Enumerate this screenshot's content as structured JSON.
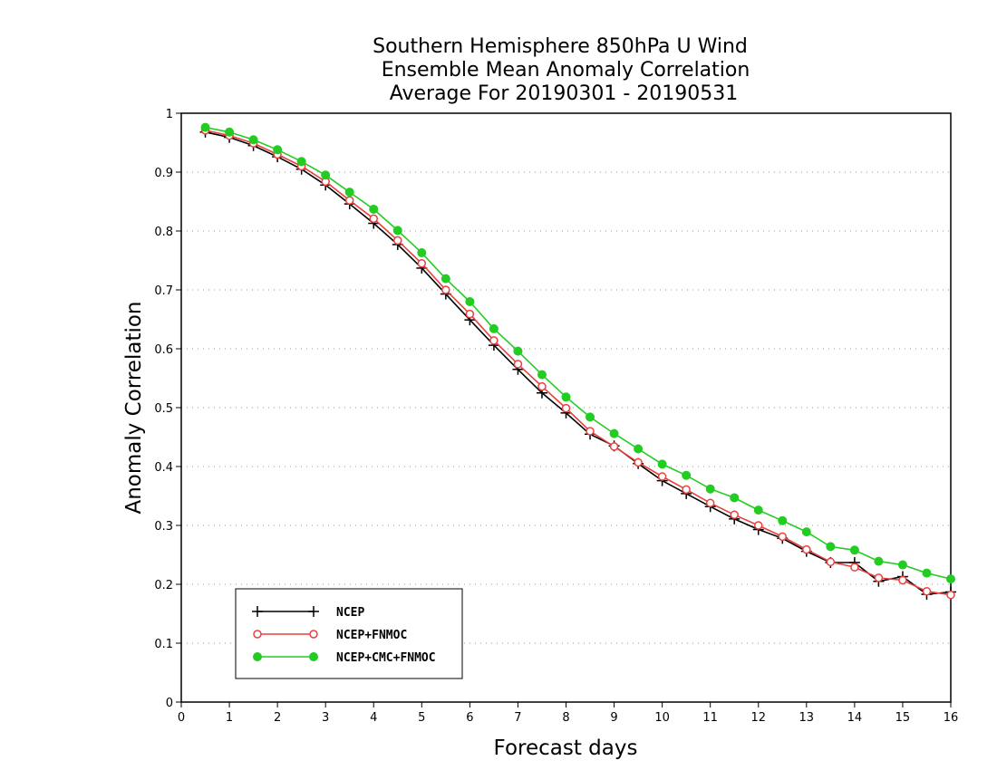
{
  "chart_data": {
    "type": "line",
    "title_lines": [
      "Southern Hemisphere 850hPa U Wind",
      "Ensemble Mean Anomaly Correlation",
      "Average For 20190301 - 20190531"
    ],
    "xlabel": "Forecast days",
    "ylabel": "Anomaly Correlation",
    "xlim": [
      0,
      16
    ],
    "ylim": [
      0,
      1
    ],
    "x_ticks": [
      "0",
      "1",
      "2",
      "3",
      "4",
      "5",
      "6",
      "7",
      "8",
      "9",
      "10",
      "11",
      "12",
      "13",
      "14",
      "15",
      "16"
    ],
    "y_ticks": [
      "0",
      "0.1",
      "0.2",
      "0.3",
      "0.4",
      "0.5",
      "0.6",
      "0.7",
      "0.8",
      "0.9",
      "1"
    ],
    "grid": "horizontal dotted",
    "legend_position": "bottom-left",
    "x": [
      0.5,
      1,
      1.5,
      2,
      2.5,
      3,
      3.5,
      4,
      4.5,
      5,
      5.5,
      6,
      6.5,
      7,
      7.5,
      8,
      8.5,
      9,
      9.5,
      10,
      10.5,
      11,
      11.5,
      12,
      12.5,
      13,
      13.5,
      14,
      14.5,
      15,
      15.5,
      16
    ],
    "series": [
      {
        "name": "NCEP",
        "color": "#000000",
        "marker": "plus",
        "values": [
          0.968,
          0.959,
          0.945,
          0.926,
          0.905,
          0.878,
          0.846,
          0.813,
          0.777,
          0.737,
          0.693,
          0.649,
          0.606,
          0.565,
          0.525,
          0.491,
          0.455,
          0.435,
          0.405,
          0.376,
          0.354,
          0.332,
          0.311,
          0.293,
          0.278,
          0.256,
          0.237,
          0.237,
          0.205,
          0.213,
          0.183,
          0.187
        ]
      },
      {
        "name": "NCEP+FNMOC",
        "color": "#e8403f",
        "marker": "open-circle",
        "values": [
          0.971,
          0.962,
          0.949,
          0.93,
          0.91,
          0.884,
          0.852,
          0.821,
          0.784,
          0.745,
          0.7,
          0.659,
          0.614,
          0.574,
          0.536,
          0.499,
          0.46,
          0.434,
          0.407,
          0.383,
          0.361,
          0.338,
          0.318,
          0.3,
          0.281,
          0.259,
          0.238,
          0.229,
          0.211,
          0.207,
          0.188,
          0.182
        ]
      },
      {
        "name": "NCEP+CMC+FNMOC",
        "color": "#22cc22",
        "marker": "filled-circle",
        "values": [
          0.976,
          0.968,
          0.955,
          0.938,
          0.918,
          0.895,
          0.866,
          0.837,
          0.801,
          0.763,
          0.719,
          0.68,
          0.634,
          0.596,
          0.556,
          0.518,
          0.484,
          0.456,
          0.43,
          0.404,
          0.385,
          0.362,
          0.347,
          0.326,
          0.308,
          0.289,
          0.264,
          0.258,
          0.239,
          0.233,
          0.219,
          0.209
        ]
      }
    ]
  }
}
